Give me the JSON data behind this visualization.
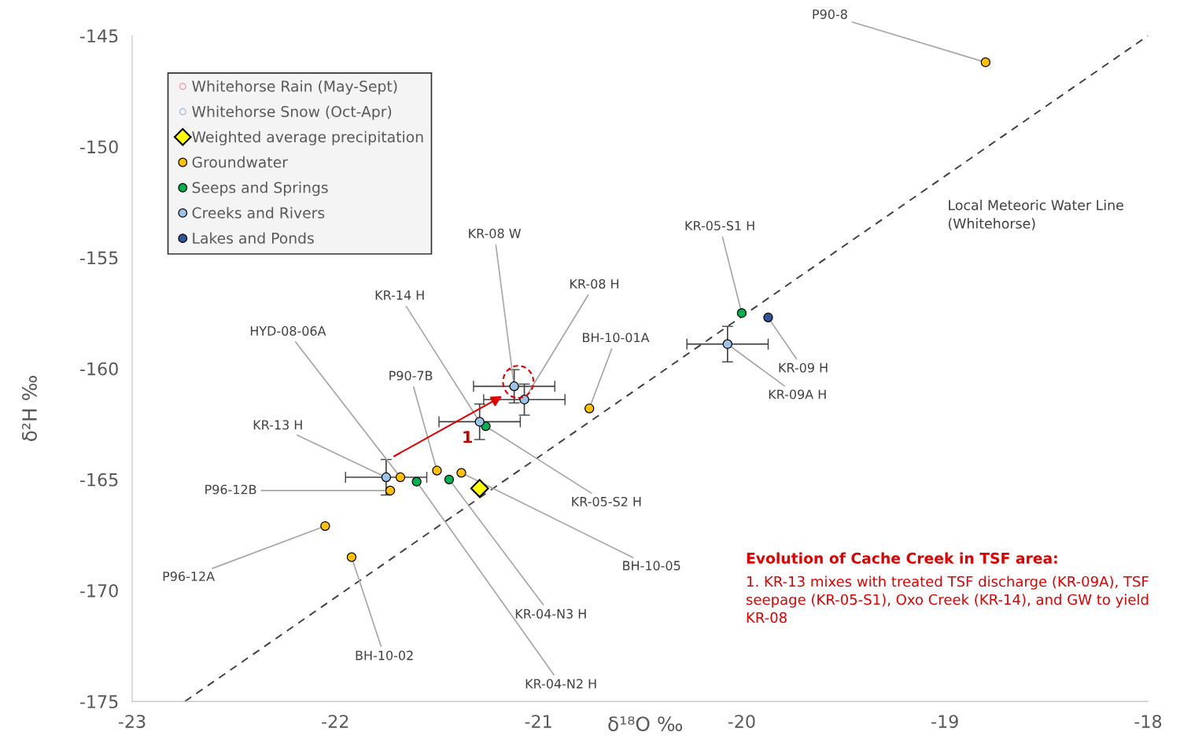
{
  "chart_data": {
    "type": "scatter",
    "xlabel": "δ¹⁸O ‰",
    "ylabel": "δ²H ‰",
    "xlim": [
      -23,
      -18
    ],
    "xticks": [
      -23,
      -22,
      -21,
      -20,
      -19,
      -18
    ],
    "ylim": [
      -175,
      -145
    ],
    "yticks": [
      -175,
      -170,
      -165,
      -160,
      -155,
      -150,
      -145
    ],
    "grid": false,
    "legend": "top left",
    "marker": "circle",
    "series": [
      {
        "name": "Whitehorse Rain (May-Sept)",
        "color": "#e89a9a"
      },
      {
        "name": "Whitehorse Snow (Oct-Apr)",
        "color": "#9db9d9"
      },
      {
        "name": "Weighted average precipitation",
        "marker": "diamond",
        "color": "#ffff00",
        "x": [
          -21.29
        ],
        "values": [
          -165.4
        ]
      },
      {
        "name": "Groundwater",
        "color": "#ffc000",
        "x": [
          -18.8,
          -20.75,
          -21.68,
          -21.73,
          -21.5,
          -21.38,
          -22.05,
          -21.92
        ],
        "values": [
          -146.2,
          -161.8,
          -164.9,
          -165.5,
          -164.6,
          -164.7,
          -167.1,
          -168.5
        ]
      },
      {
        "name": "Seeps and Springs",
        "color": "#00b050",
        "x": [
          -20.0,
          -21.26,
          -21.6,
          -21.44
        ],
        "values": [
          -157.5,
          -162.6,
          -165.1,
          -165.0
        ]
      },
      {
        "name": "Creeks and Rivers",
        "color": "#9dc3e6",
        "x": [
          -21.12,
          -21.07,
          -21.29,
          -21.75,
          -20.07
        ],
        "values": [
          -160.8,
          -161.4,
          -162.4,
          -164.9,
          -158.9
        ],
        "errors": [
          0.75,
          0.7,
          0.8,
          0.8,
          0.8
        ],
        "xerrors": [
          0.2,
          0.2,
          0.2,
          0.2,
          0.2
        ]
      },
      {
        "name": "Lakes and Ponds",
        "color": "#2f5597",
        "x": [
          -19.87
        ],
        "values": [
          -157.7
        ]
      },
      {
        "name": "Local Meteoric Water Line (Whitehorse)",
        "type": "line",
        "marker": "none",
        "line_style": "dashed",
        "color": "#404040",
        "x": [
          -22.74,
          -18.0
        ],
        "values": [
          -175.0,
          -145.0
        ]
      }
    ],
    "annotations": [
      {
        "text": "P90-8",
        "x": -18.8,
        "y": -146.2
      },
      {
        "text": "BH-10-01A",
        "x": -20.75,
        "y": -161.8
      },
      {
        "text": "HYD-08-06A",
        "x": -21.68,
        "y": -164.9
      },
      {
        "text": "P96-12B",
        "x": -21.73,
        "y": -165.5
      },
      {
        "text": "P90-7B",
        "x": -21.5,
        "y": -164.6
      },
      {
        "text": "BH-10-05",
        "x": -21.38,
        "y": -164.7
      },
      {
        "text": "P96-12A",
        "x": -22.05,
        "y": -167.1
      },
      {
        "text": "BH-10-02",
        "x": -21.92,
        "y": -168.5
      },
      {
        "text": "KR-05-S1 H",
        "x": -20.0,
        "y": -157.5
      },
      {
        "text": "KR-05-S2 H",
        "x": -21.26,
        "y": -162.6
      },
      {
        "text": "KR-04-N2 H",
        "x": -21.6,
        "y": -165.1
      },
      {
        "text": "KR-04-N3 H",
        "x": -21.44,
        "y": -165.0
      },
      {
        "text": "KR-08 W",
        "x": -21.12,
        "y": -160.8
      },
      {
        "text": "KR-08 H",
        "x": -21.07,
        "y": -161.4
      },
      {
        "text": "KR-14 H",
        "x": -21.29,
        "y": -162.4
      },
      {
        "text": "KR-13 H",
        "x": -21.75,
        "y": -164.9
      },
      {
        "text": "KR-09A H",
        "x": -20.07,
        "y": -158.9
      },
      {
        "text": "KR-09 H",
        "x": -19.87,
        "y": -157.7
      },
      "1",
      "Evolution of Cache Creek in TSF area:",
      "1. KR-13 mixes with treated TSF discharge (KR-09A), TSF seepage (KR-05-S1), Oxo Creek (KR-14), and GW to yield KR-08"
    ]
  }
}
